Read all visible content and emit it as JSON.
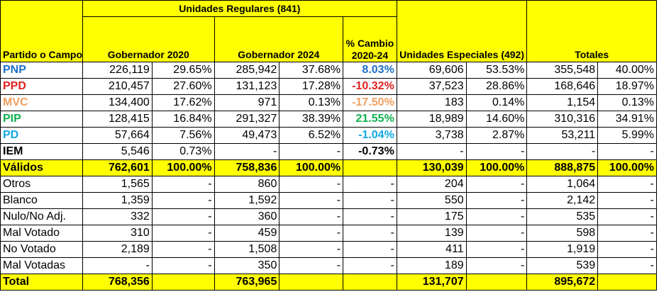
{
  "headers": {
    "partido": "Partido o Campo",
    "regulares": "Unidades Regulares (841)",
    "gob2020": "Gobernador 2020",
    "gob2024": "Gobernador 2024",
    "cambio": "% Cambio 2020-24",
    "especiales": "Unidades Especiales (492)",
    "totales": "Totales"
  },
  "party_colors": {
    "PNP": "#1f6fc5",
    "PPD": "#e02020",
    "MVC": "#f0a060",
    "PIP": "#10b050",
    "PD": "#10a8e0",
    "IEM": "#000000"
  },
  "rows": [
    {
      "party": "PNP",
      "g20": "226,119",
      "g20p": "29.65%",
      "g24": "285,942",
      "g24p": "37.68%",
      "chg": "8.03%",
      "ue": "69,606",
      "uep": "53.53%",
      "tot": "355,548",
      "totp": "40.00%",
      "chg_color": "#1f6fc5"
    },
    {
      "party": "PPD",
      "g20": "210,457",
      "g20p": "27.60%",
      "g24": "131,123",
      "g24p": "17.28%",
      "chg": "-10.32%",
      "ue": "37,523",
      "uep": "28.86%",
      "tot": "168,646",
      "totp": "18.97%",
      "chg_color": "#e02020"
    },
    {
      "party": "MVC",
      "g20": "134,400",
      "g20p": "17.62%",
      "g24": "971",
      "g24p": "0.13%",
      "chg": "-17.50%",
      "ue": "183",
      "uep": "0.14%",
      "tot": "1,154",
      "totp": "0.13%",
      "chg_color": "#f0a060"
    },
    {
      "party": "PIP",
      "g20": "128,415",
      "g20p": "16.84%",
      "g24": "291,327",
      "g24p": "38.39%",
      "chg": "21.55%",
      "ue": "18,989",
      "uep": "14.60%",
      "tot": "310,316",
      "totp": "34.91%",
      "chg_color": "#10b050"
    },
    {
      "party": "PD",
      "g20": "57,664",
      "g20p": "7.56%",
      "g24": "49,473",
      "g24p": "6.52%",
      "chg": "-1.04%",
      "ue": "3,738",
      "uep": "2.87%",
      "tot": "53,211",
      "totp": "5.99%",
      "chg_color": "#10a8e0"
    },
    {
      "party": "IEM",
      "g20": "5,546",
      "g20p": "0.73%",
      "g24": "-",
      "g24p": "-",
      "chg": "-0.73%",
      "ue": "-",
      "uep": "-",
      "tot": "-",
      "totp": "-",
      "chg_color": "#000000"
    }
  ],
  "validos": {
    "label": "Válidos",
    "g20": "762,601",
    "g20p": "100.00%",
    "g24": "758,836",
    "g24p": "100.00%",
    "ue": "130,039",
    "uep": "100.00%",
    "tot": "888,875",
    "totp": "100.00%"
  },
  "other_rows": [
    {
      "label": "Otros",
      "g20": "1,565",
      "g20p": "-",
      "g24": "860",
      "g24p": "-",
      "chg": "-",
      "ue": "204",
      "uep": "-",
      "tot": "1,064",
      "totp": "-"
    },
    {
      "label": "Blanco",
      "g20": "1,359",
      "g20p": "-",
      "g24": "1,592",
      "g24p": "-",
      "chg": "-",
      "ue": "550",
      "uep": "-",
      "tot": "2,142",
      "totp": "-"
    },
    {
      "label": "Nulo/No Adj.",
      "g20": "332",
      "g20p": "-",
      "g24": "360",
      "g24p": "-",
      "chg": "-",
      "ue": "175",
      "uep": "-",
      "tot": "535",
      "totp": "-"
    },
    {
      "label": "Mal Votado",
      "g20": "310",
      "g20p": "-",
      "g24": "459",
      "g24p": "-",
      "chg": "-",
      "ue": "139",
      "uep": "-",
      "tot": "598",
      "totp": "-"
    },
    {
      "label": "No Votado",
      "g20": "2,189",
      "g20p": "-",
      "g24": "1,508",
      "g24p": "-",
      "chg": "-",
      "ue": "411",
      "uep": "-",
      "tot": "1,919",
      "totp": "-"
    },
    {
      "label": "Mal Votadas",
      "g20": "-",
      "g20p": "-",
      "g24": "350",
      "g24p": "-",
      "chg": "-",
      "ue": "189",
      "uep": "-",
      "tot": "539",
      "totp": "-"
    }
  ],
  "total": {
    "label": "Total",
    "g20": "768,356",
    "g24": "763,965",
    "ue": "131,707",
    "tot": "895,672"
  }
}
